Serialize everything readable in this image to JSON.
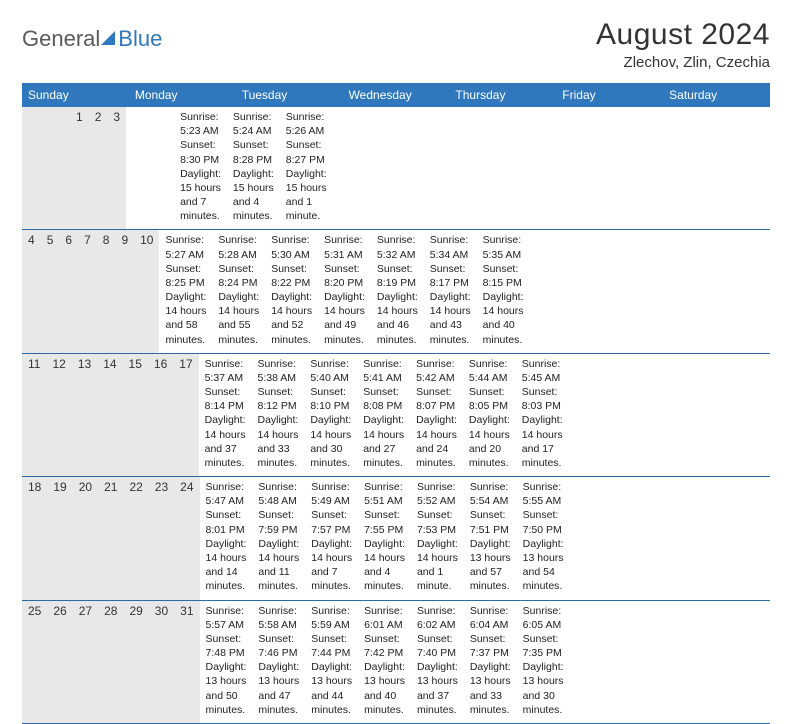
{
  "brand": {
    "part1": "General",
    "part2": "Blue"
  },
  "title": "August 2024",
  "location": "Zlechov, Zlin, Czechia",
  "colors": {
    "header_bg": "#2f78bd",
    "header_text": "#ffffff",
    "daynum_bg": "#e8e8e8",
    "row_border": "#2f6aa8",
    "text": "#222222",
    "logo_gray": "#5a5a5a",
    "logo_blue": "#2f78bd",
    "page_bg": "#ffffff"
  },
  "typography": {
    "title_fontsize": 30,
    "location_fontsize": 15,
    "dow_fontsize": 12,
    "daynum_fontsize": 12,
    "details_fontsize": 10.5
  },
  "daysOfWeek": [
    "Sunday",
    "Monday",
    "Tuesday",
    "Wednesday",
    "Thursday",
    "Friday",
    "Saturday"
  ],
  "weeks": [
    [
      {
        "n": "",
        "sunrise": "",
        "sunset": "",
        "daylight": ""
      },
      {
        "n": "",
        "sunrise": "",
        "sunset": "",
        "daylight": ""
      },
      {
        "n": "",
        "sunrise": "",
        "sunset": "",
        "daylight": ""
      },
      {
        "n": "",
        "sunrise": "",
        "sunset": "",
        "daylight": ""
      },
      {
        "n": "1",
        "sunrise": "Sunrise: 5:23 AM",
        "sunset": "Sunset: 8:30 PM",
        "daylight": "Daylight: 15 hours and 7 minutes."
      },
      {
        "n": "2",
        "sunrise": "Sunrise: 5:24 AM",
        "sunset": "Sunset: 8:28 PM",
        "daylight": "Daylight: 15 hours and 4 minutes."
      },
      {
        "n": "3",
        "sunrise": "Sunrise: 5:26 AM",
        "sunset": "Sunset: 8:27 PM",
        "daylight": "Daylight: 15 hours and 1 minute."
      }
    ],
    [
      {
        "n": "4",
        "sunrise": "Sunrise: 5:27 AM",
        "sunset": "Sunset: 8:25 PM",
        "daylight": "Daylight: 14 hours and 58 minutes."
      },
      {
        "n": "5",
        "sunrise": "Sunrise: 5:28 AM",
        "sunset": "Sunset: 8:24 PM",
        "daylight": "Daylight: 14 hours and 55 minutes."
      },
      {
        "n": "6",
        "sunrise": "Sunrise: 5:30 AM",
        "sunset": "Sunset: 8:22 PM",
        "daylight": "Daylight: 14 hours and 52 minutes."
      },
      {
        "n": "7",
        "sunrise": "Sunrise: 5:31 AM",
        "sunset": "Sunset: 8:20 PM",
        "daylight": "Daylight: 14 hours and 49 minutes."
      },
      {
        "n": "8",
        "sunrise": "Sunrise: 5:32 AM",
        "sunset": "Sunset: 8:19 PM",
        "daylight": "Daylight: 14 hours and 46 minutes."
      },
      {
        "n": "9",
        "sunrise": "Sunrise: 5:34 AM",
        "sunset": "Sunset: 8:17 PM",
        "daylight": "Daylight: 14 hours and 43 minutes."
      },
      {
        "n": "10",
        "sunrise": "Sunrise: 5:35 AM",
        "sunset": "Sunset: 8:15 PM",
        "daylight": "Daylight: 14 hours and 40 minutes."
      }
    ],
    [
      {
        "n": "11",
        "sunrise": "Sunrise: 5:37 AM",
        "sunset": "Sunset: 8:14 PM",
        "daylight": "Daylight: 14 hours and 37 minutes."
      },
      {
        "n": "12",
        "sunrise": "Sunrise: 5:38 AM",
        "sunset": "Sunset: 8:12 PM",
        "daylight": "Daylight: 14 hours and 33 minutes."
      },
      {
        "n": "13",
        "sunrise": "Sunrise: 5:40 AM",
        "sunset": "Sunset: 8:10 PM",
        "daylight": "Daylight: 14 hours and 30 minutes."
      },
      {
        "n": "14",
        "sunrise": "Sunrise: 5:41 AM",
        "sunset": "Sunset: 8:08 PM",
        "daylight": "Daylight: 14 hours and 27 minutes."
      },
      {
        "n": "15",
        "sunrise": "Sunrise: 5:42 AM",
        "sunset": "Sunset: 8:07 PM",
        "daylight": "Daylight: 14 hours and 24 minutes."
      },
      {
        "n": "16",
        "sunrise": "Sunrise: 5:44 AM",
        "sunset": "Sunset: 8:05 PM",
        "daylight": "Daylight: 14 hours and 20 minutes."
      },
      {
        "n": "17",
        "sunrise": "Sunrise: 5:45 AM",
        "sunset": "Sunset: 8:03 PM",
        "daylight": "Daylight: 14 hours and 17 minutes."
      }
    ],
    [
      {
        "n": "18",
        "sunrise": "Sunrise: 5:47 AM",
        "sunset": "Sunset: 8:01 PM",
        "daylight": "Daylight: 14 hours and 14 minutes."
      },
      {
        "n": "19",
        "sunrise": "Sunrise: 5:48 AM",
        "sunset": "Sunset: 7:59 PM",
        "daylight": "Daylight: 14 hours and 11 minutes."
      },
      {
        "n": "20",
        "sunrise": "Sunrise: 5:49 AM",
        "sunset": "Sunset: 7:57 PM",
        "daylight": "Daylight: 14 hours and 7 minutes."
      },
      {
        "n": "21",
        "sunrise": "Sunrise: 5:51 AM",
        "sunset": "Sunset: 7:55 PM",
        "daylight": "Daylight: 14 hours and 4 minutes."
      },
      {
        "n": "22",
        "sunrise": "Sunrise: 5:52 AM",
        "sunset": "Sunset: 7:53 PM",
        "daylight": "Daylight: 14 hours and 1 minute."
      },
      {
        "n": "23",
        "sunrise": "Sunrise: 5:54 AM",
        "sunset": "Sunset: 7:51 PM",
        "daylight": "Daylight: 13 hours and 57 minutes."
      },
      {
        "n": "24",
        "sunrise": "Sunrise: 5:55 AM",
        "sunset": "Sunset: 7:50 PM",
        "daylight": "Daylight: 13 hours and 54 minutes."
      }
    ],
    [
      {
        "n": "25",
        "sunrise": "Sunrise: 5:57 AM",
        "sunset": "Sunset: 7:48 PM",
        "daylight": "Daylight: 13 hours and 50 minutes."
      },
      {
        "n": "26",
        "sunrise": "Sunrise: 5:58 AM",
        "sunset": "Sunset: 7:46 PM",
        "daylight": "Daylight: 13 hours and 47 minutes."
      },
      {
        "n": "27",
        "sunrise": "Sunrise: 5:59 AM",
        "sunset": "Sunset: 7:44 PM",
        "daylight": "Daylight: 13 hours and 44 minutes."
      },
      {
        "n": "28",
        "sunrise": "Sunrise: 6:01 AM",
        "sunset": "Sunset: 7:42 PM",
        "daylight": "Daylight: 13 hours and 40 minutes."
      },
      {
        "n": "29",
        "sunrise": "Sunrise: 6:02 AM",
        "sunset": "Sunset: 7:40 PM",
        "daylight": "Daylight: 13 hours and 37 minutes."
      },
      {
        "n": "30",
        "sunrise": "Sunrise: 6:04 AM",
        "sunset": "Sunset: 7:37 PM",
        "daylight": "Daylight: 13 hours and 33 minutes."
      },
      {
        "n": "31",
        "sunrise": "Sunrise: 6:05 AM",
        "sunset": "Sunset: 7:35 PM",
        "daylight": "Daylight: 13 hours and 30 minutes."
      }
    ]
  ]
}
